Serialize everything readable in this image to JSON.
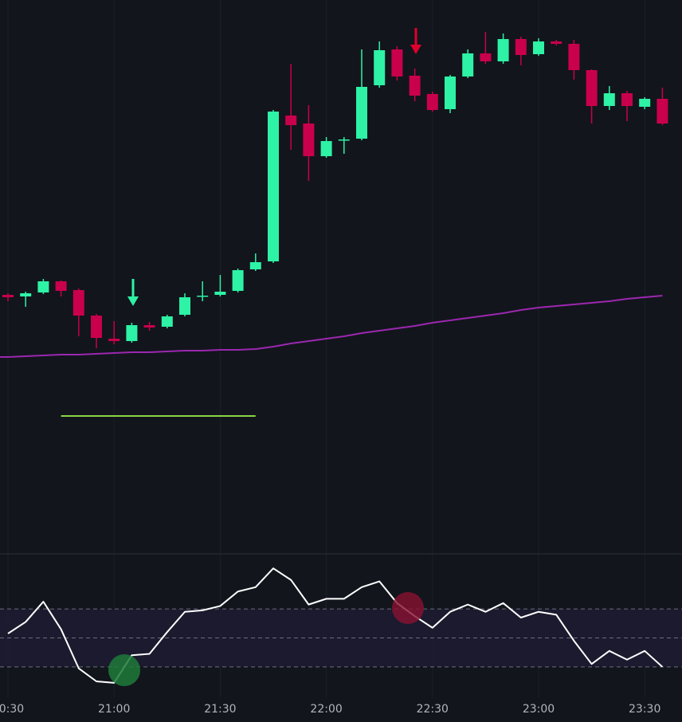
{
  "chart_data": [
    {
      "type": "candlestick",
      "up_color": "#2ef2a5",
      "down_color": "#c9004b",
      "grid": true,
      "categories": [
        "20:30",
        null,
        null,
        null,
        null,
        null,
        "21:00",
        null,
        null,
        null,
        null,
        null,
        "21:30",
        null,
        null,
        null,
        null,
        null,
        "22:00",
        null,
        null,
        null,
        null,
        null,
        "22:30",
        null,
        null,
        null,
        null,
        null,
        "23:00",
        null,
        null,
        null,
        null,
        null,
        "23:30",
        null
      ],
      "open": [
        320,
        318,
        323,
        337,
        326,
        294,
        265,
        262,
        282,
        280,
        295,
        318,
        320,
        325,
        352,
        362,
        545,
        535,
        494,
        514,
        516,
        583,
        628,
        595,
        572,
        553,
        594,
        623,
        613,
        641,
        622,
        638,
        635,
        602,
        557,
        573,
        556,
        566
      ],
      "high": [
        322,
        324,
        340,
        338,
        328,
        296,
        287,
        285,
        286,
        295,
        322,
        337,
        345,
        353,
        372,
        552,
        610,
        558,
        518,
        518,
        628,
        638,
        632,
        604,
        575,
        596,
        628,
        650,
        648,
        644,
        642,
        640,
        640,
        603,
        582,
        576,
        568,
        580
      ],
      "low": [
        312,
        305,
        321,
        318,
        268,
        253,
        258,
        260,
        275,
        278,
        293,
        312,
        318,
        323,
        350,
        360,
        502,
        463,
        492,
        497,
        514,
        580,
        589,
        563,
        550,
        548,
        592,
        610,
        610,
        608,
        620,
        633,
        590,
        535,
        552,
        538,
        553,
        533
      ],
      "close": [
        317,
        322,
        337,
        325,
        294,
        266,
        262,
        282,
        279,
        293,
        317,
        319,
        324,
        351,
        361,
        550,
        533,
        494,
        513,
        515,
        581,
        627,
        594,
        570,
        552,
        594,
        623,
        613,
        641,
        621,
        638,
        635,
        602,
        557,
        573,
        557,
        566,
        535
      ],
      "ma": {
        "color": "#9c27b0",
        "values": [
          242,
          243,
          244,
          245,
          245,
          246,
          247,
          248,
          248,
          249,
          250,
          250,
          251,
          251,
          252,
          255,
          259,
          262,
          265,
          268,
          272,
          275,
          278,
          281,
          285,
          288,
          291,
          294,
          297,
          301,
          304,
          306,
          308,
          310,
          312,
          315,
          317,
          319
        ]
      },
      "level_line": {
        "value": 168,
        "color": "#8bd645"
      },
      "ylim": [
        0,
        690
      ]
    },
    {
      "type": "line",
      "color": "#ffffff",
      "band_color": "#1e1b33",
      "values": [
        53,
        61,
        75,
        56,
        29,
        20,
        19,
        38,
        39,
        54,
        68,
        69,
        72,
        82,
        85,
        98,
        90,
        73,
        77,
        77,
        85,
        89,
        74,
        65,
        57,
        68,
        73,
        68,
        74,
        64,
        68,
        66,
        48,
        32,
        41,
        35,
        41,
        30
      ],
      "levels": [
        70,
        50,
        30
      ],
      "ylim": [
        9,
        108
      ]
    }
  ]
}
